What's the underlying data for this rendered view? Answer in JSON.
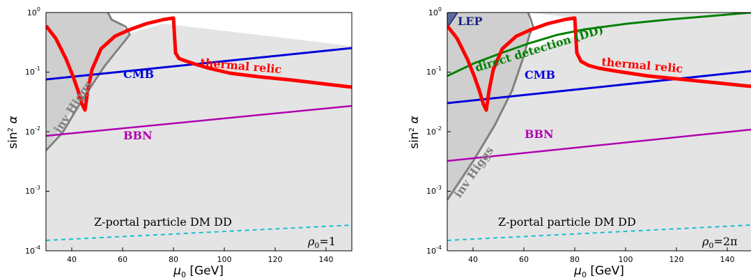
{
  "chart_data": [
    {
      "type": "line",
      "xlabel": "μ",
      "xlabel_sub": "0",
      "xlabel_unit": "[GeV]",
      "ylabel": "sin",
      "ylabel_sup": "2",
      "ylabel_sym": "α",
      "xlim": [
        30,
        150
      ],
      "ylim_log10": [
        -4,
        0
      ],
      "x_ticks": [
        "40",
        "60",
        "80",
        "100",
        "120",
        "140"
      ],
      "y_ticks": [
        {
          "base": "10",
          "exp": "0"
        },
        {
          "base": "10",
          "exp": "-1"
        },
        {
          "base": "10",
          "exp": "-2"
        },
        {
          "base": "10",
          "exp": "-3"
        },
        {
          "base": "10",
          "exp": "-4"
        }
      ],
      "annotations": {
        "cmb": "CMB",
        "bbn": "BBN",
        "thermal": "thermal relic",
        "higgs": "inv Higgs",
        "zportal": "Z-portal particle DM DD",
        "rho": "ρ",
        "rho_sub": "0",
        "rho_val": "=1"
      },
      "colors": {
        "cmb": "#0000dd",
        "bbn": "#b000b0",
        "thermal": "#ff0000",
        "higgs": "#808080",
        "zportal": "#17becf",
        "shade": "#e4e4e4"
      },
      "series": [
        {
          "key": "cmb",
          "x": [
            30,
            60,
            90,
            120,
            150
          ],
          "y": [
            0.075,
            0.115,
            0.16,
            0.2,
            0.25
          ]
        },
        {
          "key": "bbn",
          "x": [
            30,
            60,
            90,
            120,
            150
          ],
          "y": [
            0.0082,
            0.0125,
            0.017,
            0.0215,
            0.0265
          ]
        },
        {
          "key": "zportal",
          "x": [
            30,
            60,
            90,
            120,
            150
          ],
          "y": [
            0.000145,
            0.00017,
            0.00019,
            0.00022,
            0.00026
          ]
        },
        {
          "key": "thermal",
          "x": [
            30,
            35,
            40,
            43,
            45,
            46,
            47,
            50,
            55,
            60,
            65,
            70,
            75,
            79.9,
            80,
            81,
            82,
            85,
            90,
            100,
            110,
            120,
            130,
            140,
            150
          ],
          "y": [
            0.6,
            0.32,
            0.12,
            0.05,
            0.023,
            0.023,
            0.05,
            0.12,
            0.3,
            0.48,
            0.62,
            0.7,
            0.76,
            0.8,
            0.8,
            0.2,
            0.17,
            0.15,
            0.135,
            0.115,
            0.1,
            0.088,
            0.077,
            0.067,
            0.057
          ]
        },
        {
          "key": "higgs",
          "x": [
            30,
            35,
            40,
            45,
            50,
            55,
            60
          ],
          "y": [
            0.0045,
            0.012,
            0.03,
            0.07,
            0.15,
            0.32,
            0.6
          ]
        }
      ]
    },
    {
      "type": "line",
      "xlabel": "μ",
      "xlabel_sub": "0",
      "xlabel_unit": "[GeV]",
      "ylabel": "sin",
      "ylabel_sup": "2",
      "ylabel_sym": "α",
      "xlim": [
        30,
        150
      ],
      "ylim_log10": [
        -4,
        0
      ],
      "x_ticks": [
        "40",
        "60",
        "80",
        "100",
        "120",
        "140"
      ],
      "y_ticks": [
        {
          "base": "10",
          "exp": "0"
        },
        {
          "base": "10",
          "exp": "-1"
        },
        {
          "base": "10",
          "exp": "-2"
        },
        {
          "base": "10",
          "exp": "-3"
        },
        {
          "base": "10",
          "exp": "-4"
        }
      ],
      "annotations": {
        "lep": "LEP",
        "dd": "direct detection (DD)",
        "cmb": "CMB",
        "bbn": "BBN",
        "thermal": "thermal relic",
        "higgs": "inv Higgs",
        "zportal": "Z-portal particle DM DD",
        "rho": "ρ",
        "rho_sub": "0",
        "rho_val": "=2π"
      },
      "colors": {
        "cmb": "#0000dd",
        "bbn": "#b000b0",
        "thermal": "#ff0000",
        "higgs": "#808080",
        "zportal": "#17becf",
        "dd": "#008000",
        "lep": "#1a237e",
        "shade": "#e4e4e4"
      },
      "series": [
        {
          "key": "dd",
          "x": [
            30,
            45,
            60,
            80,
            100,
            120,
            150
          ],
          "y": [
            0.085,
            0.17,
            0.28,
            0.42,
            0.56,
            0.7,
            0.9
          ]
        },
        {
          "key": "cmb",
          "x": [
            30,
            60,
            90,
            120,
            150
          ],
          "y": [
            0.03,
            0.045,
            0.06,
            0.078,
            0.1
          ]
        },
        {
          "key": "bbn",
          "x": [
            30,
            60,
            90,
            120,
            150
          ],
          "y": [
            0.0033,
            0.0052,
            0.007,
            0.0088,
            0.0108
          ]
        },
        {
          "key": "zportal",
          "x": [
            30,
            60,
            90,
            120,
            150
          ],
          "y": [
            0.000145,
            0.00017,
            0.00019,
            0.00022,
            0.00026
          ]
        },
        {
          "key": "thermal",
          "x": [
            30,
            35,
            40,
            43,
            45,
            46,
            47,
            50,
            55,
            60,
            65,
            70,
            75,
            79.9,
            80,
            81,
            82,
            85,
            90,
            100,
            110,
            120,
            130,
            140,
            150
          ],
          "y": [
            0.6,
            0.32,
            0.12,
            0.05,
            0.023,
            0.023,
            0.05,
            0.12,
            0.3,
            0.48,
            0.62,
            0.7,
            0.76,
            0.8,
            0.8,
            0.2,
            0.15,
            0.13,
            0.12,
            0.105,
            0.092,
            0.082,
            0.074,
            0.066,
            0.058
          ]
        },
        {
          "key": "higgs",
          "x": [
            30,
            35,
            40,
            45,
            50,
            55,
            60
          ],
          "y": [
            0.0007,
            0.0025,
            0.008,
            0.025,
            0.08,
            0.25,
            0.7
          ]
        }
      ]
    }
  ]
}
